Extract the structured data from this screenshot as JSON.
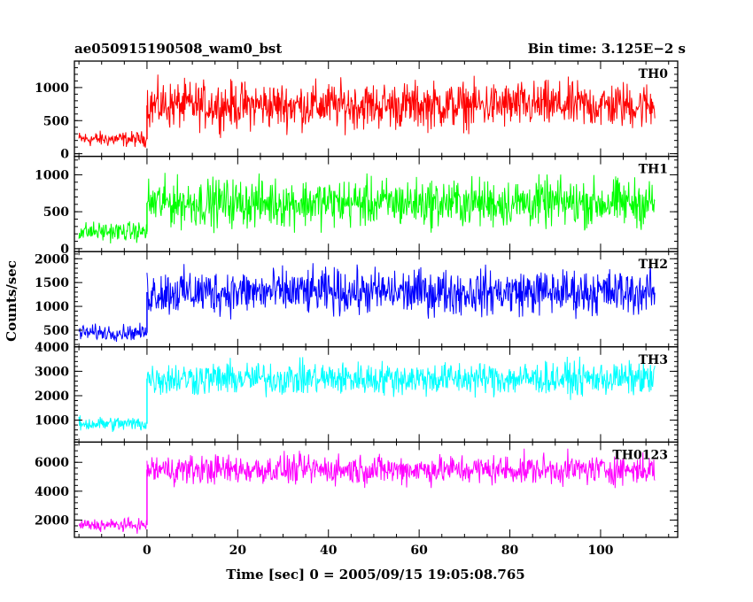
{
  "chart_data": {
    "type": "line",
    "title_left": "ae050915190508_wam0_bst",
    "title_right": "Bin time: 3.125E−2 s",
    "xlabel": "Time [sec] 0 = 2005/09/15 19:05:08.765",
    "ylabel": "Counts/sec",
    "xlim": [
      -16,
      117
    ],
    "x_ticks": [
      0,
      20,
      40,
      60,
      80,
      100
    ],
    "x_tick_labels": [
      "0",
      "20",
      "40",
      "60",
      "80",
      "100"
    ],
    "grid": false,
    "panels": [
      {
        "name": "TH0",
        "color": "#ff0000",
        "ylim": [
          -40,
          1400
        ],
        "y_ticks": [
          0,
          500,
          1000
        ],
        "y_tick_labels": [
          "0",
          "500",
          "1000"
        ],
        "series": [
          {
            "t_start": -15,
            "t_end": 0,
            "mean": 220,
            "amplitude": 170
          },
          {
            "t_start": 0,
            "t_end": 112,
            "mean": 730,
            "amplitude": 520
          }
        ]
      },
      {
        "name": "TH1",
        "color": "#00ff00",
        "ylim": [
          -40,
          1250
        ],
        "y_ticks": [
          0,
          500,
          1000
        ],
        "y_tick_labels": [
          "0",
          "500",
          "1000"
        ],
        "series": [
          {
            "t_start": -15,
            "t_end": 0,
            "mean": 230,
            "amplitude": 190
          },
          {
            "t_start": 0,
            "t_end": 112,
            "mean": 620,
            "amplitude": 480
          }
        ]
      },
      {
        "name": "TH2",
        "color": "#0000ff",
        "ylim": [
          150,
          2150
        ],
        "y_ticks": [
          500,
          1000,
          1500,
          2000
        ],
        "y_tick_labels": [
          "500",
          "1000",
          "1500",
          "2000"
        ],
        "series": [
          {
            "t_start": -15,
            "t_end": 0,
            "mean": 450,
            "amplitude": 240
          },
          {
            "t_start": 0,
            "t_end": 112,
            "mean": 1300,
            "amplitude": 700
          }
        ]
      },
      {
        "name": "TH3",
        "color": "#00ffff",
        "ylim": [
          100,
          4000
        ],
        "y_ticks": [
          1000,
          2000,
          3000,
          4000
        ],
        "y_tick_labels": [
          "1000",
          "2000",
          "3000",
          "4000"
        ],
        "series": [
          {
            "t_start": -15,
            "t_end": 0,
            "mean": 850,
            "amplitude": 450
          },
          {
            "t_start": 0,
            "t_end": 112,
            "mean": 2700,
            "amplitude": 1000
          }
        ]
      },
      {
        "name": "TH0123",
        "color": "#ff00ff",
        "ylim": [
          800,
          7400
        ],
        "y_ticks": [
          2000,
          4000,
          6000
        ],
        "y_tick_labels": [
          "2000",
          "4000",
          "6000"
        ],
        "series": [
          {
            "t_start": -15,
            "t_end": 0,
            "mean": 1650,
            "amplitude": 650
          },
          {
            "t_start": 0,
            "t_end": 112,
            "mean": 5500,
            "amplitude": 1500
          }
        ]
      }
    ]
  }
}
